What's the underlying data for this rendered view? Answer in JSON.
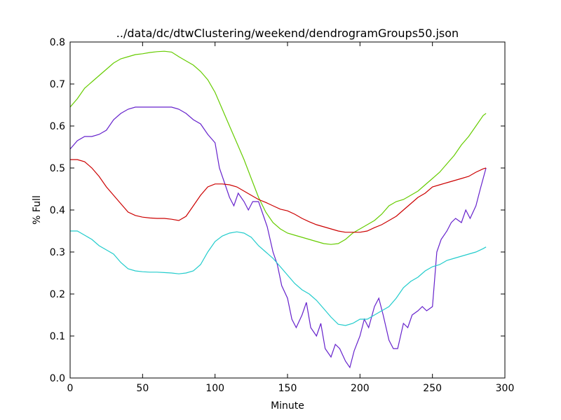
{
  "chart_data": {
    "type": "line",
    "title": "../data/dc/dtwClustering/weekend/dendrogramGroups50.json",
    "xlabel": "Minute",
    "ylabel": "% Full",
    "xlim": [
      0,
      300
    ],
    "ylim": [
      0.0,
      0.8
    ],
    "xticks": [
      "0",
      "50",
      "100",
      "150",
      "200",
      "250",
      "300"
    ],
    "yticks": [
      "0.0",
      "0.1",
      "0.2",
      "0.3",
      "0.4",
      "0.5",
      "0.6",
      "0.7",
      "0.8"
    ],
    "grid": false,
    "series": [
      {
        "color": "#66cc00",
        "x": [
          0,
          5,
          10,
          15,
          20,
          25,
          30,
          35,
          40,
          45,
          50,
          55,
          60,
          65,
          70,
          75,
          80,
          85,
          90,
          95,
          100,
          105,
          110,
          115,
          120,
          125,
          130,
          135,
          140,
          145,
          150,
          155,
          160,
          165,
          170,
          175,
          180,
          185,
          190,
          195,
          200,
          205,
          210,
          215,
          220,
          225,
          230,
          235,
          240,
          245,
          250,
          255,
          260,
          265,
          270,
          275,
          280,
          285,
          287
        ],
        "y": [
          0.645,
          0.665,
          0.69,
          0.705,
          0.72,
          0.735,
          0.75,
          0.76,
          0.765,
          0.77,
          0.772,
          0.775,
          0.777,
          0.778,
          0.776,
          0.765,
          0.755,
          0.745,
          0.73,
          0.71,
          0.68,
          0.64,
          0.6,
          0.56,
          0.52,
          0.475,
          0.43,
          0.395,
          0.37,
          0.355,
          0.345,
          0.34,
          0.335,
          0.33,
          0.325,
          0.32,
          0.318,
          0.32,
          0.33,
          0.345,
          0.355,
          0.365,
          0.375,
          0.39,
          0.41,
          0.42,
          0.425,
          0.435,
          0.445,
          0.46,
          0.475,
          0.49,
          0.51,
          0.53,
          0.555,
          0.575,
          0.6,
          0.625,
          0.63
        ]
      },
      {
        "color": "#6622cc",
        "x": [
          0,
          5,
          10,
          15,
          20,
          25,
          30,
          35,
          40,
          45,
          50,
          55,
          60,
          65,
          70,
          75,
          80,
          85,
          90,
          95,
          100,
          103,
          106,
          110,
          113,
          116,
          120,
          123,
          126,
          130,
          133,
          136,
          140,
          143,
          146,
          150,
          153,
          156,
          160,
          163,
          166,
          170,
          173,
          176,
          180,
          183,
          186,
          190,
          193,
          196,
          200,
          203,
          206,
          210,
          213,
          216,
          220,
          223,
          226,
          230,
          233,
          236,
          240,
          243,
          246,
          250,
          253,
          256,
          260,
          263,
          266,
          270,
          273,
          276,
          280,
          283,
          287
        ],
        "y": [
          0.545,
          0.565,
          0.575,
          0.575,
          0.58,
          0.59,
          0.615,
          0.63,
          0.64,
          0.645,
          0.645,
          0.645,
          0.645,
          0.645,
          0.645,
          0.64,
          0.63,
          0.615,
          0.605,
          0.58,
          0.56,
          0.5,
          0.47,
          0.43,
          0.41,
          0.44,
          0.42,
          0.4,
          0.42,
          0.42,
          0.39,
          0.36,
          0.3,
          0.27,
          0.22,
          0.19,
          0.14,
          0.12,
          0.15,
          0.18,
          0.12,
          0.1,
          0.13,
          0.07,
          0.05,
          0.08,
          0.07,
          0.04,
          0.025,
          0.065,
          0.1,
          0.14,
          0.12,
          0.17,
          0.19,
          0.15,
          0.09,
          0.07,
          0.07,
          0.13,
          0.12,
          0.15,
          0.16,
          0.17,
          0.16,
          0.17,
          0.3,
          0.33,
          0.35,
          0.37,
          0.38,
          0.37,
          0.4,
          0.38,
          0.41,
          0.45,
          0.5
        ]
      },
      {
        "color": "#cc0000",
        "x": [
          0,
          5,
          10,
          15,
          20,
          25,
          30,
          35,
          40,
          45,
          50,
          55,
          60,
          65,
          70,
          75,
          80,
          85,
          90,
          95,
          100,
          105,
          110,
          115,
          120,
          125,
          130,
          135,
          140,
          145,
          150,
          155,
          160,
          165,
          170,
          175,
          180,
          185,
          190,
          195,
          200,
          205,
          210,
          215,
          220,
          225,
          230,
          235,
          240,
          245,
          250,
          255,
          260,
          265,
          270,
          275,
          280,
          285,
          287
        ],
        "y": [
          0.52,
          0.52,
          0.515,
          0.5,
          0.48,
          0.455,
          0.435,
          0.415,
          0.395,
          0.387,
          0.383,
          0.381,
          0.38,
          0.38,
          0.378,
          0.375,
          0.385,
          0.41,
          0.435,
          0.455,
          0.462,
          0.462,
          0.46,
          0.455,
          0.445,
          0.435,
          0.425,
          0.418,
          0.41,
          0.402,
          0.398,
          0.39,
          0.38,
          0.372,
          0.365,
          0.36,
          0.355,
          0.35,
          0.347,
          0.347,
          0.347,
          0.35,
          0.358,
          0.365,
          0.375,
          0.385,
          0.4,
          0.415,
          0.43,
          0.44,
          0.455,
          0.46,
          0.465,
          0.47,
          0.475,
          0.48,
          0.49,
          0.498,
          0.5
        ]
      },
      {
        "color": "#22cccc",
        "x": [
          0,
          5,
          10,
          15,
          20,
          25,
          30,
          35,
          40,
          45,
          50,
          55,
          60,
          65,
          70,
          75,
          80,
          85,
          90,
          95,
          100,
          105,
          110,
          115,
          120,
          125,
          130,
          135,
          140,
          145,
          150,
          155,
          160,
          165,
          170,
          175,
          180,
          185,
          190,
          195,
          200,
          205,
          210,
          215,
          220,
          225,
          230,
          235,
          240,
          245,
          250,
          255,
          260,
          265,
          270,
          275,
          280,
          285,
          287
        ],
        "y": [
          0.35,
          0.35,
          0.34,
          0.33,
          0.315,
          0.305,
          0.295,
          0.275,
          0.26,
          0.255,
          0.253,
          0.252,
          0.252,
          0.251,
          0.25,
          0.248,
          0.25,
          0.255,
          0.27,
          0.3,
          0.325,
          0.338,
          0.345,
          0.348,
          0.345,
          0.335,
          0.315,
          0.3,
          0.285,
          0.265,
          0.245,
          0.225,
          0.21,
          0.2,
          0.185,
          0.165,
          0.145,
          0.128,
          0.125,
          0.13,
          0.14,
          0.14,
          0.15,
          0.16,
          0.17,
          0.19,
          0.215,
          0.23,
          0.24,
          0.255,
          0.265,
          0.27,
          0.28,
          0.285,
          0.29,
          0.295,
          0.3,
          0.308,
          0.312
        ]
      }
    ]
  }
}
